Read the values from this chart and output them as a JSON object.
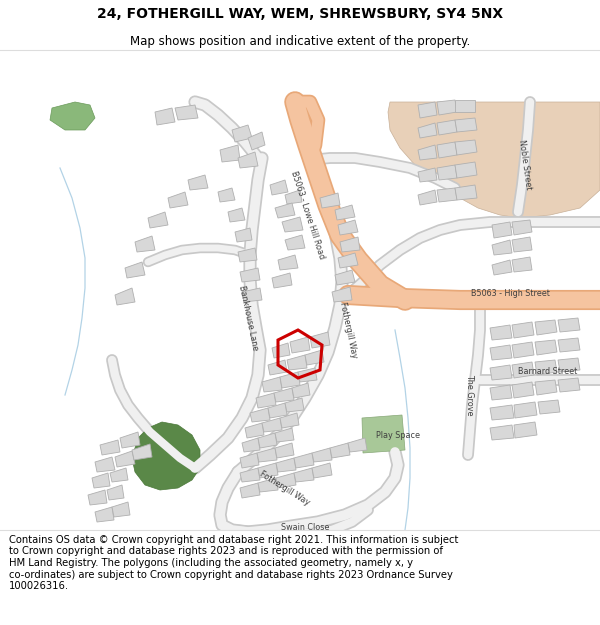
{
  "title": "24, FOTHERGILL WAY, WEM, SHREWSBURY, SY4 5NX",
  "subtitle": "Map shows position and indicative extent of the property.",
  "footer": "Contains OS data © Crown copyright and database right 2021. This information is subject\nto Crown copyright and database rights 2023 and is reproduced with the permission of\nHM Land Registry. The polygons (including the associated geometry, namely x, y\nco-ordinates) are subject to Crown copyright and database rights 2023 Ordnance Survey\n100026316.",
  "road_major_fill": "#f5c4a0",
  "road_major_edge": "#e8a878",
  "road_minor_fill": "#f0f0f0",
  "road_minor_edge": "#c8c8c8",
  "bld_fill": "#d8d8d8",
  "bld_edge": "#b0b0b0",
  "green_fill": "#8ab87a",
  "green_edge": "#6a9a5a",
  "dark_green_fill": "#5a8848",
  "dark_green_edge": "#4a7838",
  "play_fill": "#a8c898",
  "play_edge": "#88a878",
  "bg_area_fill": "#e8d0b8",
  "bg_area_edge": "#c8b098",
  "stream_color": "#a0c8e0",
  "red_poly_edge": "#cc0000",
  "white": "#ffffff",
  "title_fs": 10,
  "sub_fs": 8.5,
  "footer_fs": 7.2,
  "label_fs": 5.8
}
